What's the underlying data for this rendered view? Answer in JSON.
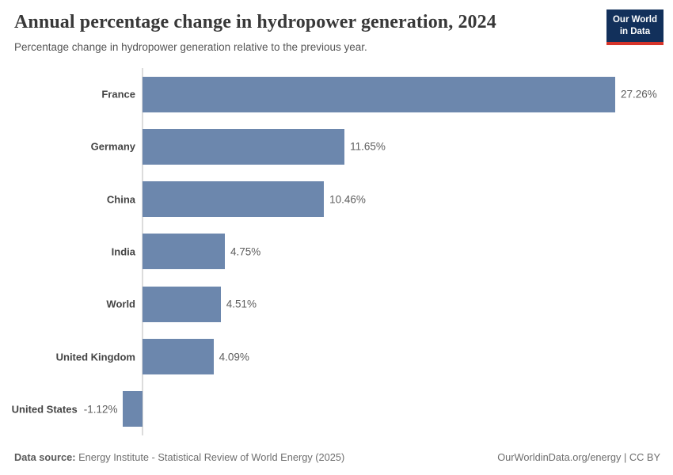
{
  "header": {
    "title": "Annual percentage change in hydropower generation, 2024",
    "subtitle": "Percentage change in hydropower generation relative to the previous year.",
    "logo": {
      "line1": "Our World",
      "line2": "in Data",
      "bg_color": "#12305b",
      "accent_color": "#d6342a"
    }
  },
  "chart_data": {
    "type": "bar",
    "orientation": "horizontal",
    "title": "Annual percentage change in hydropower generation, 2024",
    "subtitle": "Percentage change in hydropower generation relative to the previous year.",
    "categories": [
      "France",
      "Germany",
      "China",
      "India",
      "World",
      "United Kingdom",
      "United States"
    ],
    "values": [
      27.26,
      11.65,
      10.46,
      4.75,
      4.51,
      4.09,
      -1.12
    ],
    "value_labels": [
      "27.26%",
      "11.65%",
      "10.46%",
      "4.75%",
      "4.51%",
      "4.09%",
      "-1.12%"
    ],
    "xlabel": "",
    "ylabel": "",
    "xlim": [
      -1.5,
      30
    ],
    "grid": false,
    "legend": null,
    "bar_color": "#6c87ad",
    "axis_color": "#dcdcdc"
  },
  "footer": {
    "datasource_label": "Data source:",
    "datasource_text": " Energy Institute - Statistical Review of World Energy (2025)",
    "credit": "OurWorldinData.org/energy | CC BY"
  }
}
